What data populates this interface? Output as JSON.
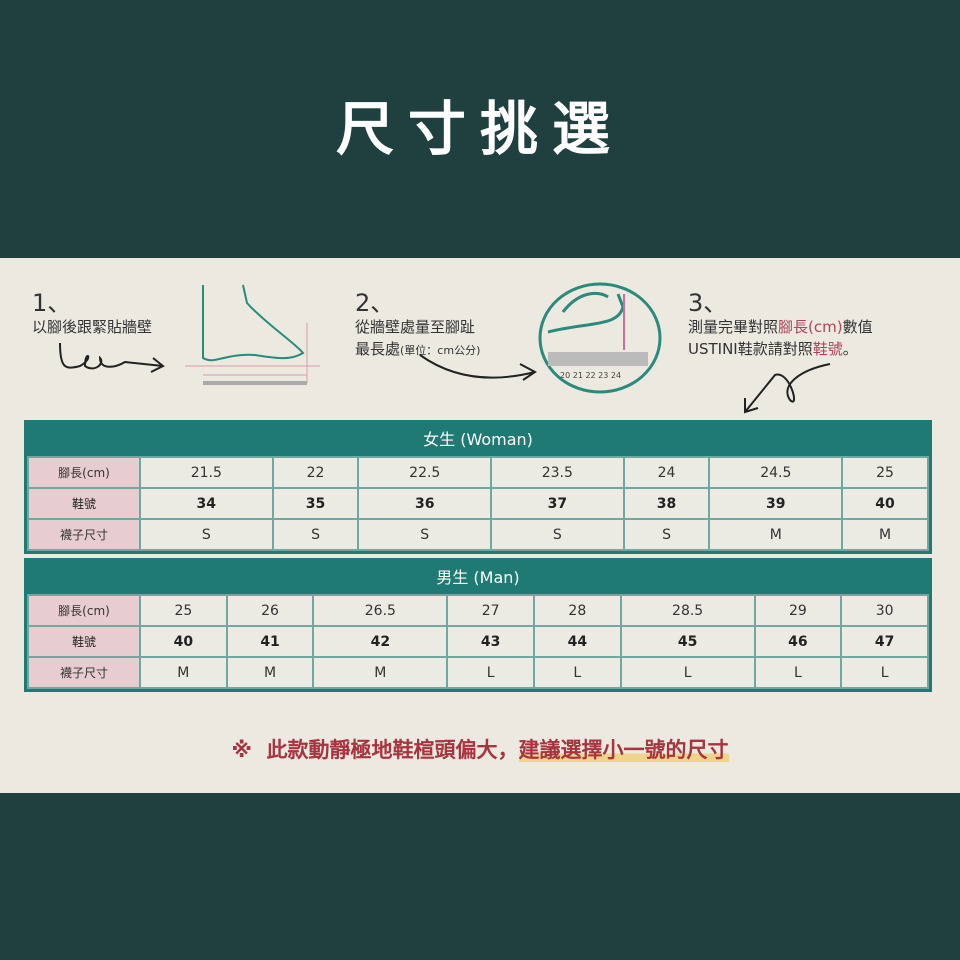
{
  "title": "尺寸挑選",
  "steps": [
    {
      "num": "1、",
      "text": "以腳後跟緊貼牆壁"
    },
    {
      "num": "2、",
      "line1": "從牆壁處量至腳趾",
      "line2": "最長處",
      "unit": "(單位：cm公分)",
      "ruler": "20 21 22 23 24"
    },
    {
      "num": "3、",
      "line1_a": "測量完畢對照",
      "line1_b": "腳長(cm)",
      "line1_c": "數值",
      "line2_a": "USTINI鞋款請對照",
      "line2_b": "鞋號",
      "line2_c": "。"
    }
  ],
  "woman": {
    "header": "女生 (Woman)",
    "labels": [
      "腳長(cm)",
      "鞋號",
      "襪子尺寸"
    ],
    "foot": [
      "21.5",
      "22",
      "22.5",
      "23.5",
      "24",
      "24.5",
      "25"
    ],
    "size": [
      "34",
      "35",
      "36",
      "37",
      "38",
      "39",
      "40"
    ],
    "sock": [
      "S",
      "S",
      "S",
      "S",
      "S",
      "M",
      "M"
    ]
  },
  "man": {
    "header": "男生 (Man)",
    "labels": [
      "腳長(cm)",
      "鞋號",
      "襪子尺寸"
    ],
    "foot": [
      "25",
      "26",
      "26.5",
      "27",
      "28",
      "28.5",
      "29",
      "30"
    ],
    "size": [
      "40",
      "41",
      "42",
      "43",
      "44",
      "45",
      "46",
      "47"
    ],
    "sock": [
      "M",
      "M",
      "M",
      "L",
      "L",
      "L",
      "L",
      "L"
    ]
  },
  "note": {
    "mark": "※",
    "text": "此款動靜極地鞋楦頭偏大，",
    "highlight": "建議選擇小一號的尺寸"
  },
  "colors": {
    "dark": "#1f403f",
    "teal": "#1e7a72",
    "pink": "#e7cdd0",
    "accent": "#a8343f"
  }
}
